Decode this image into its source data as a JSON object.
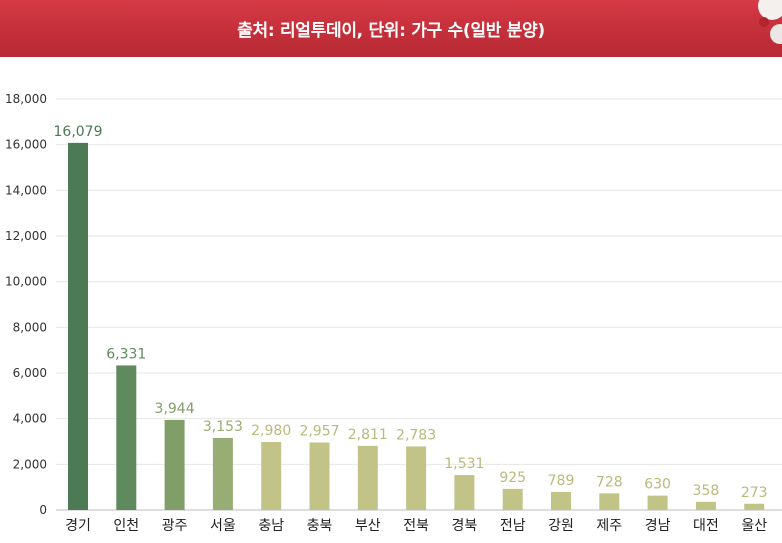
{
  "header": {
    "title": "출처: 리얼투데이, 단위: 가구 수(일반 분양)"
  },
  "colors": {
    "banner": "#c42f3a",
    "grid": "#e6e6e6",
    "bar_palette": [
      "#4b7a55",
      "#5f8a5e",
      "#7f9e68",
      "#98ad73",
      "#c2c386"
    ],
    "label_palette": [
      "#4b7a55",
      "#5f8a5e",
      "#7f9e68",
      "#98ad73",
      "#b9ba7c"
    ]
  },
  "chart_data": {
    "type": "bar",
    "title": "",
    "xlabel": "",
    "ylabel": "",
    "categories": [
      "경기",
      "인천",
      "광주",
      "서울",
      "충남",
      "충북",
      "부산",
      "전북",
      "경북",
      "전남",
      "강원",
      "제주",
      "경남",
      "대전",
      "울산"
    ],
    "values": [
      16079,
      6331,
      3944,
      3153,
      2980,
      2957,
      2811,
      2783,
      1531,
      925,
      789,
      728,
      630,
      358,
      273
    ],
    "value_labels": [
      "16,079",
      "6,331",
      "3,944",
      "3,153",
      "2,980",
      "2,957",
      "2,811",
      "2,783",
      "1,531",
      "925",
      "789",
      "728",
      "630",
      "358",
      "273"
    ],
    "yticks": [
      0,
      2000,
      4000,
      6000,
      8000,
      10000,
      12000,
      14000,
      16000,
      18000
    ],
    "ytick_labels": [
      "0",
      "2,000",
      "4,000",
      "6,000",
      "8,000",
      "10,000",
      "12,000",
      "14,000",
      "16,000",
      "18,000"
    ],
    "ylim": [
      0,
      18000
    ],
    "grid": true,
    "legend": "none"
  }
}
